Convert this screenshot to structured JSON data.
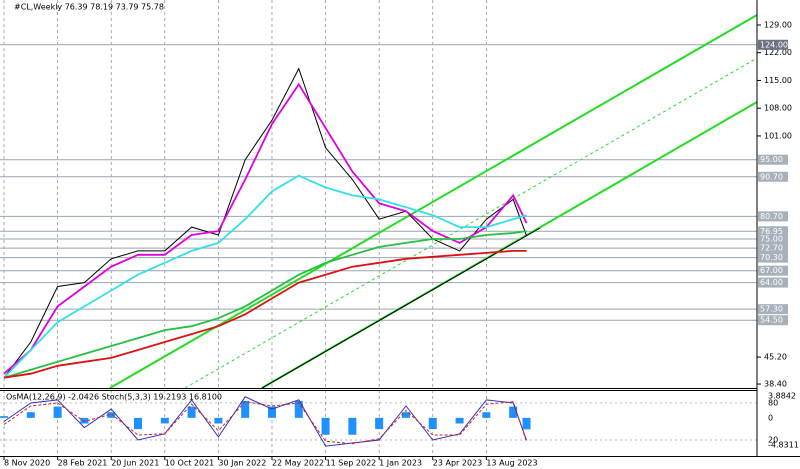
{
  "chart_data": [
    {
      "type": "line",
      "title": "#CL,Weekly  76.39 78.19 73.79 75.78",
      "x": [
        0,
        8,
        16,
        24,
        32,
        40,
        48,
        56,
        64,
        72,
        80,
        88,
        96,
        104,
        112,
        120,
        128,
        136,
        144,
        152,
        156
      ],
      "xlim": [
        -1.2,
        224.8
      ],
      "xticks": [
        {
          "value": 0,
          "label": "8 Nov 2020"
        },
        {
          "value": 16,
          "label": "28 Feb 2021"
        },
        {
          "value": 32,
          "label": "20 Jun 2021"
        },
        {
          "value": 48,
          "label": "10 Oct 2021"
        },
        {
          "value": 64,
          "label": "30 Jan 2022"
        },
        {
          "value": 80,
          "label": "22 May 2022"
        },
        {
          "value": 96,
          "label": "11 Sep 2022"
        },
        {
          "value": 112,
          "label": "1 Jan 2023"
        },
        {
          "value": 128,
          "label": "23 Apr 2023"
        },
        {
          "value": 144,
          "label": "13 Aug 2023"
        }
      ],
      "ylim": [
        37.4,
        135.3
      ],
      "yticks": [
        {
          "value": 129,
          "label": "129.00"
        },
        {
          "value": 122,
          "label": "122.00"
        },
        {
          "value": 115,
          "label": "115.00"
        },
        {
          "value": 108,
          "label": "108.00"
        },
        {
          "value": 101,
          "label": "101.00"
        },
        {
          "value": 45.2,
          "label": "45.20"
        },
        {
          "value": 38.4,
          "label": "38.40"
        }
      ],
      "levels": [
        {
          "value": 124,
          "label": "124.00"
        },
        {
          "value": 95,
          "label": "95.00"
        },
        {
          "value": 90.7,
          "label": "90.70"
        },
        {
          "value": 80.7,
          "label": "80.70"
        },
        {
          "value": 76.95,
          "label": "76.95"
        },
        {
          "value": 75,
          "label": "75.00"
        },
        {
          "value": 72.7,
          "label": "72.70"
        },
        {
          "value": 70.3,
          "label": "70.30"
        },
        {
          "value": 67,
          "label": "67.00"
        },
        {
          "value": 64,
          "label": "64.00"
        },
        {
          "value": 57.3,
          "label": "57.30"
        },
        {
          "value": 54.5,
          "label": "54.50"
        }
      ],
      "series": [
        {
          "color": "#000000",
          "values": [
            40,
            49,
            63,
            64,
            70,
            72,
            72,
            78,
            76,
            95,
            105,
            118,
            98,
            90,
            80,
            82,
            75,
            72,
            80,
            85,
            75.78
          ]
        },
        {
          "color": "#e000e0",
          "values": [
            41,
            47,
            58,
            63,
            68,
            71,
            71,
            76,
            77,
            90,
            104,
            114,
            103,
            92,
            84,
            82,
            77,
            74,
            78,
            86,
            79
          ]
        },
        {
          "color": "#33e0e8",
          "values": [
            40,
            47,
            54,
            58,
            62,
            66,
            69,
            72,
            74,
            80,
            87,
            91,
            88,
            86,
            85,
            83,
            81,
            78,
            78,
            80,
            81
          ]
        },
        {
          "color": "#22c040",
          "values": [
            40,
            42,
            44,
            46,
            48,
            50,
            52,
            53,
            55,
            58,
            62,
            66,
            69,
            71,
            73,
            74,
            75,
            75,
            76,
            76.5,
            77
          ]
        },
        {
          "color": "#dd1111",
          "values": [
            40,
            41,
            43,
            44,
            45,
            47,
            49,
            51,
            53,
            56,
            60,
            64,
            66,
            68,
            69,
            70,
            70.5,
            71,
            71.5,
            72,
            72
          ]
        }
      ]
    },
    {
      "type": "oscillator",
      "title": "OsMA(12,26,9) -2.0426 Stoch(5,3,3) 19.2193 16.8100",
      "x": [
        0,
        8,
        16,
        24,
        32,
        40,
        48,
        56,
        64,
        72,
        80,
        88,
        96,
        104,
        112,
        120,
        128,
        136,
        144,
        152,
        156
      ],
      "ylim": [
        -6.77,
        4.94
      ],
      "yticks": [
        3.8842,
        0,
        -4.8311
      ],
      "y2lim": [
        -6,
        101
      ],
      "y2ticks": [
        80,
        20
      ],
      "series": [
        {
          "style": "bars",
          "color": "#1e90ff",
          "values": [
            0.3,
            1,
            2,
            -1,
            1,
            -2,
            -1,
            2,
            -1,
            3,
            2,
            3,
            -3,
            -3,
            -2,
            1,
            -2,
            -1,
            1,
            2,
            -2.0426
          ]
        },
        {
          "style": "line",
          "axis": "y2",
          "color": "#3030c0",
          "values": [
            50,
            80,
            85,
            40,
            70,
            20,
            30,
            85,
            25,
            90,
            70,
            85,
            10,
            15,
            20,
            75,
            20,
            30,
            85,
            80,
            19.2193
          ]
        },
        {
          "style": "dashed",
          "axis": "y2",
          "color": "#d02020",
          "values": [
            45,
            75,
            80,
            50,
            62,
            28,
            30,
            78,
            35,
            82,
            75,
            80,
            18,
            14,
            22,
            68,
            28,
            28,
            78,
            82,
            16.81
          ]
        }
      ]
    }
  ]
}
